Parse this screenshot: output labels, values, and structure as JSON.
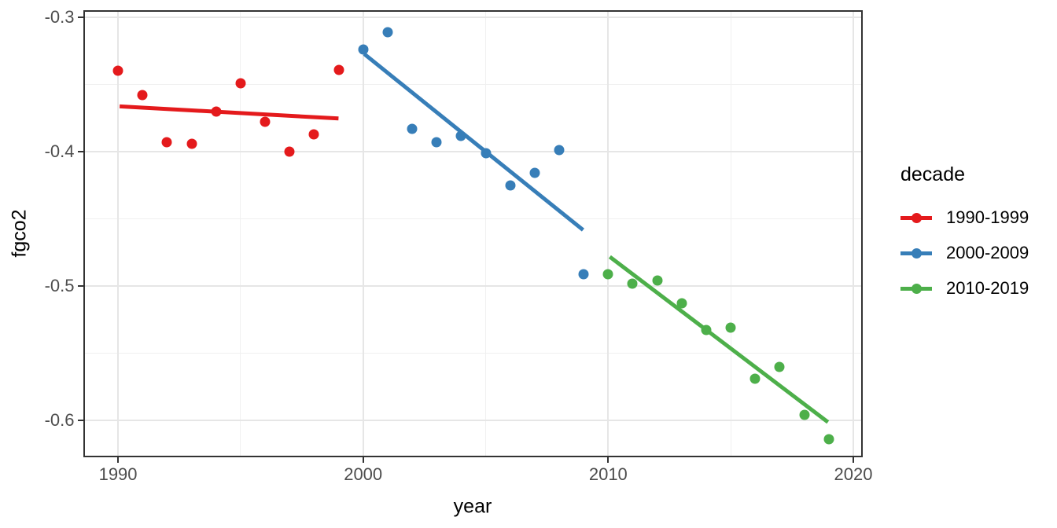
{
  "chart_data": {
    "type": "scatter",
    "title": "",
    "xlabel": "year",
    "ylabel": "fgco2",
    "grid": true,
    "xlim": [
      1988.57,
      2020.37
    ],
    "ylim": [
      -0.6272,
      -0.2944
    ],
    "x_ticks": {
      "values": [
        1990,
        2000,
        2010,
        2020
      ],
      "labels": [
        "1990",
        "2000",
        "2010",
        "2020"
      ]
    },
    "y_ticks": {
      "values": [
        -0.3,
        -0.4,
        -0.5,
        -0.6
      ],
      "labels": [
        "-0.3",
        "-0.4",
        "-0.5",
        "-0.6"
      ]
    },
    "x_minor_ticks": [
      1995,
      2005,
      2015
    ],
    "y_minor_ticks": [
      -0.35,
      -0.45,
      -0.55
    ],
    "legend": {
      "title": "decade",
      "position": "right"
    },
    "series": [
      {
        "name": "1990-1999",
        "color": "#e41a1c",
        "x": [
          1990,
          1991,
          1992,
          1993,
          1994,
          1995,
          1996,
          1997,
          1998,
          1999
        ],
        "y": [
          -0.34,
          -0.358,
          -0.393,
          -0.394,
          -0.37,
          -0.349,
          -0.378,
          -0.4,
          -0.387,
          -0.339
        ],
        "trend": {
          "x1": 1990.05,
          "y1": -0.366,
          "x2": 1998.98,
          "y2": -0.375
        }
      },
      {
        "name": "2000-2009",
        "color": "#377eb8",
        "x": [
          2000,
          2001,
          2002,
          2003,
          2004,
          2005,
          2006,
          2007,
          2008,
          2009
        ],
        "y": [
          -0.324,
          -0.311,
          -0.383,
          -0.393,
          -0.388,
          -0.401,
          -0.425,
          -0.416,
          -0.399,
          -0.491
        ],
        "trend": {
          "x1": 2000.03,
          "y1": -0.327,
          "x2": 2008.96,
          "y2": -0.458
        }
      },
      {
        "name": "2010-2019",
        "color": "#4daf4a",
        "x": [
          2010,
          2011,
          2012,
          2013,
          2014,
          2015,
          2016,
          2017,
          2018,
          2019
        ],
        "y": [
          -0.491,
          -0.498,
          -0.496,
          -0.513,
          -0.533,
          -0.531,
          -0.569,
          -0.56,
          -0.596,
          -0.614
        ],
        "trend": {
          "x1": 2010.05,
          "y1": -0.478,
          "x2": 2018.95,
          "y2": -0.601
        }
      }
    ]
  }
}
